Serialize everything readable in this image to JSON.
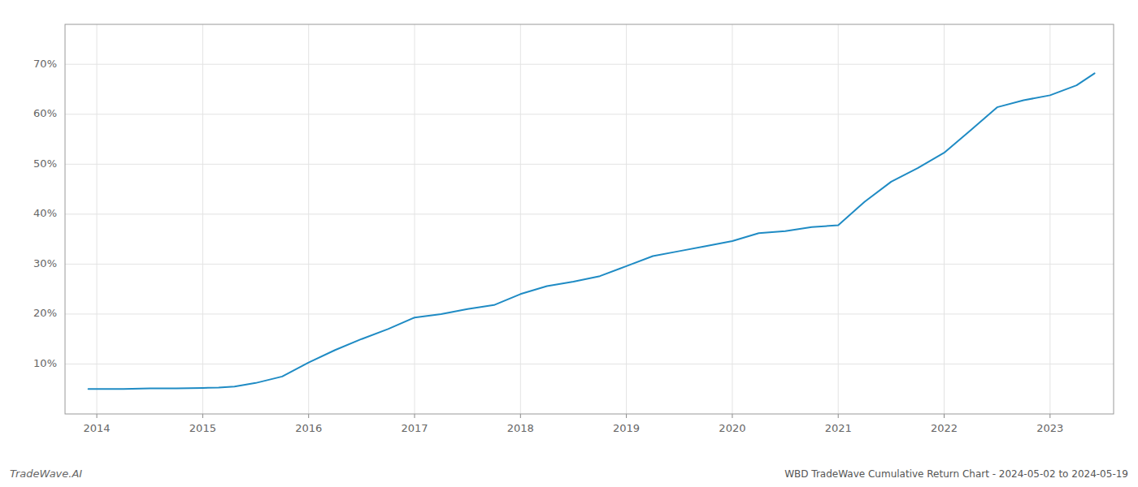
{
  "chart_data": {
    "type": "line",
    "title": "WBD TradeWave Cumulative Return Chart - 2024-05-02 to 2024-05-19",
    "annotations": [
      "TradeWave.AI"
    ],
    "color": "#1f8bc4",
    "grid": true,
    "x": [
      2013.92,
      2014.0,
      2014.25,
      2014.5,
      2014.75,
      2015.0,
      2015.15,
      2015.3,
      2015.5,
      2015.75,
      2016.0,
      2016.25,
      2016.5,
      2016.75,
      2017.0,
      2017.25,
      2017.5,
      2017.75,
      2018.0,
      2018.25,
      2018.5,
      2018.75,
      2019.0,
      2019.25,
      2019.5,
      2019.75,
      2020.0,
      2020.25,
      2020.5,
      2020.75,
      2021.0,
      2021.25,
      2021.5,
      2021.75,
      2022.0,
      2022.25,
      2022.5,
      2022.75,
      2023.0,
      2023.25,
      2023.42
    ],
    "values": [
      0.05,
      0.05,
      0.05,
      0.051,
      0.051,
      0.052,
      0.053,
      0.055,
      0.062,
      0.075,
      0.103,
      0.128,
      0.15,
      0.17,
      0.193,
      0.2,
      0.21,
      0.218,
      0.24,
      0.256,
      0.265,
      0.276,
      0.296,
      0.316,
      0.326,
      0.336,
      0.346,
      0.362,
      0.366,
      0.374,
      0.378,
      0.425,
      0.465,
      0.492,
      0.523,
      0.568,
      0.614,
      0.628,
      0.638,
      0.658,
      0.682
    ],
    "xlim": [
      2013.7,
      2023.6
    ],
    "ylim": [
      0.0,
      0.78
    ],
    "xticks": [
      2014,
      2015,
      2016,
      2017,
      2018,
      2019,
      2020,
      2021,
      2022,
      2023
    ],
    "yticks": [
      {
        "value": 0.1,
        "label": "10%"
      },
      {
        "value": 0.2,
        "label": "20%"
      },
      {
        "value": 0.3,
        "label": "30%"
      },
      {
        "value": 0.4,
        "label": "40%"
      },
      {
        "value": 0.5,
        "label": "50%"
      },
      {
        "value": 0.6,
        "label": "60%"
      },
      {
        "value": 0.7,
        "label": "70%"
      }
    ]
  }
}
